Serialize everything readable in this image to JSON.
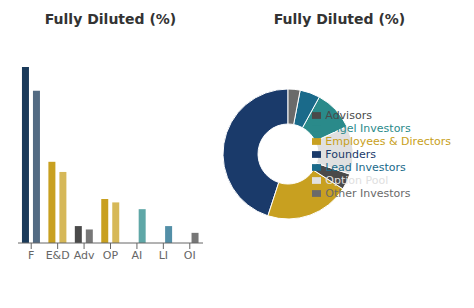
{
  "chart_data": [
    {
      "type": "bar",
      "title": "Fully Diluted (%)",
      "categories": [
        "F",
        "E&D",
        "Adv",
        "OP",
        "AI",
        "LI",
        "OI"
      ],
      "series": [
        {
          "values": [
            52,
            24,
            5,
            13,
            0,
            0,
            0
          ],
          "colors": [
            "#1a3a5a",
            "#c8a020",
            "#4a4a4a",
            "#c8a020",
            "#2a8a8a",
            "#1a6a8a",
            "#4a4a4a"
          ]
        },
        {
          "values": [
            45,
            21,
            4,
            12,
            10,
            5,
            3
          ],
          "colors": [
            "#1a3a5a",
            "#c8a020",
            "#4a4a4a",
            "#c8a020",
            "#2a8a8a",
            "#1a6a8a",
            "#4a4a4a"
          ]
        }
      ],
      "ylim": [
        0,
        60
      ],
      "tick_labels": "x",
      "grid": false
    },
    {
      "type": "pie",
      "title": "Fully Diluted (%)",
      "categories": [
        "Founders",
        "Employees & Directors",
        "Advisors",
        "Option Pool",
        "Angel Investors",
        "Lead Investors",
        "Other Investors"
      ],
      "values": [
        45,
        21,
        4,
        12,
        10,
        5,
        3
      ],
      "colors": [
        "#1a3a6a",
        "#c8a020",
        "#4a4a4a",
        "#e0e0e0",
        "#2a8a8a",
        "#1a6a8a",
        "#6a6a6a"
      ],
      "legend": "right"
    }
  ]
}
